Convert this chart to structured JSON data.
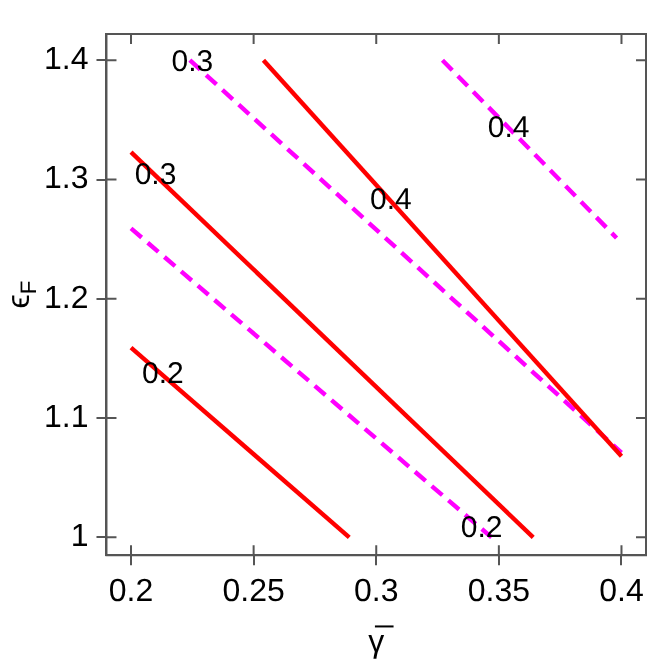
{
  "chart_data": {
    "type": "line",
    "xlabel": "γ̅",
    "ylabel": "ϵ$_{F}$",
    "xlim": [
      0.19,
      0.41
    ],
    "ylim": [
      0.985,
      1.422
    ],
    "xticks": [
      0.2,
      0.25,
      0.3,
      0.35,
      0.4
    ],
    "yticks": [
      1,
      1.1,
      1.2,
      1.3,
      1.4
    ],
    "grid": false,
    "legend": false,
    "marker": "none",
    "series": [
      {
        "color": "#ff0000",
        "line_style": "solid",
        "x": [
          0.2,
          0.289
        ],
        "values": [
          1.159,
          1.0
        ]
      },
      {
        "color": "#ff0000",
        "line_style": "solid",
        "x": [
          0.2,
          0.364
        ],
        "values": [
          1.323,
          1.0
        ]
      },
      {
        "color": "#ff0000",
        "line_style": "solid",
        "x": [
          0.254,
          0.4
        ],
        "values": [
          1.4,
          1.068
        ]
      },
      {
        "color": "#ff00ff",
        "line_style": "dashed",
        "x": [
          0.2,
          0.347
        ],
        "values": [
          1.259,
          1.0
        ]
      },
      {
        "color": "#ff00ff",
        "line_style": "dashed",
        "x": [
          0.224,
          0.4
        ],
        "values": [
          1.4,
          1.071
        ]
      },
      {
        "color": "#ff00ff",
        "line_style": "dashed",
        "x": [
          0.327,
          0.398
        ],
        "values": [
          1.4,
          1.251
        ]
      }
    ],
    "annotations": [
      {
        "text": "0.2",
        "x": 0.213,
        "y": 1.136
      },
      {
        "text": "0.3",
        "x": 0.21,
        "y": 1.303
      },
      {
        "text": "0.4",
        "x": 0.306,
        "y": 1.282
      },
      {
        "text": "0.2",
        "x": 0.343,
        "y": 1.007
      },
      {
        "text": "0.3",
        "x": 0.225,
        "y": 1.398
      },
      {
        "text": "0.4",
        "x": 0.354,
        "y": 1.343
      }
    ]
  }
}
